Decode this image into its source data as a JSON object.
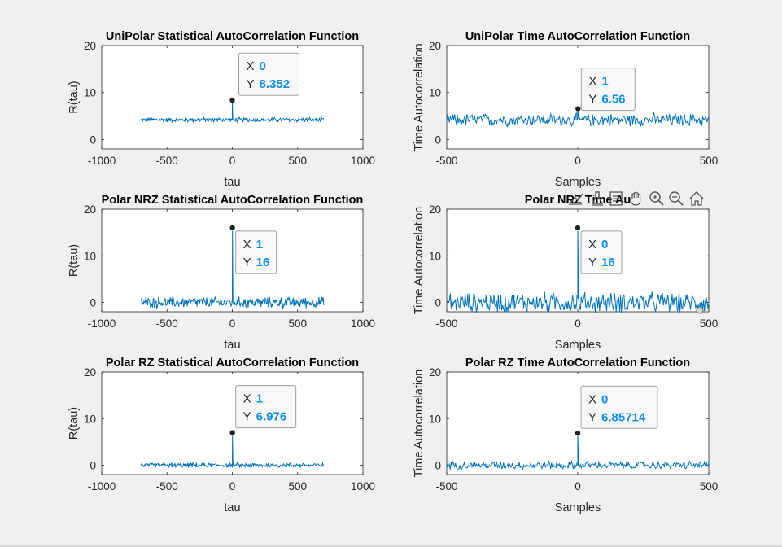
{
  "toolbar": {
    "icons": [
      "export-icon",
      "brush-icon",
      "link-data-icon",
      "pan-hand-icon",
      "zoom-in-icon",
      "zoom-out-icon",
      "home-icon"
    ]
  },
  "colors": {
    "line": "#0072bd",
    "tip_value": "#0d8ef0",
    "figure_bg": "#f0f0f0",
    "axes_bg": "#ffffff"
  },
  "chart_data": [
    {
      "type": "line",
      "title": "UniPolar Statistical AutoCorrelation Function",
      "xlabel": "tau",
      "ylabel": "R(tau)",
      "xlim": [
        -1000,
        1000
      ],
      "ylim": [
        -2,
        20
      ],
      "xticks": [
        "-1000",
        "-500",
        "0",
        "500",
        "1000"
      ],
      "yticks": [
        "0",
        "10",
        "20"
      ],
      "series": [
        {
          "x_range": [
            -700,
            700
          ],
          "baseline": 4.2,
          "noise_amplitude": 0.6,
          "peak": {
            "x": 0,
            "y": 8.352
          }
        }
      ],
      "datatip": {
        "x_label": "X",
        "x": "0",
        "y_label": "Y",
        "y": "8.352"
      }
    },
    {
      "type": "line",
      "title": "UniPolar Time AutoCorrelation Function",
      "xlabel": "Samples",
      "ylabel": "Time Autocorrelation",
      "xlim": [
        -500,
        500
      ],
      "ylim": [
        -2,
        20
      ],
      "xticks": [
        "-500",
        "0",
        "500"
      ],
      "yticks": [
        "0",
        "10",
        "20"
      ],
      "series": [
        {
          "x_range": [
            -500,
            500
          ],
          "baseline": 4.2,
          "noise_amplitude": 1.6,
          "peak": {
            "x": 1,
            "y": 6.56
          }
        }
      ],
      "datatip": {
        "x_label": "X",
        "x": "1",
        "y_label": "Y",
        "y": "6.56"
      }
    },
    {
      "type": "line",
      "title": "Polar NRZ Statistical AutoCorrelation Function",
      "xlabel": "tau",
      "ylabel": "R(tau)",
      "xlim": [
        -1000,
        1000
      ],
      "ylim": [
        -2,
        20
      ],
      "xticks": [
        "-1000",
        "-500",
        "0",
        "500",
        "1000"
      ],
      "yticks": [
        "0",
        "10",
        "20"
      ],
      "series": [
        {
          "x_range": [
            -700,
            700
          ],
          "baseline": 0,
          "noise_amplitude": 1.4,
          "peak": {
            "x": 1,
            "y": 16
          }
        }
      ],
      "datatip": {
        "x_label": "X",
        "x": "1",
        "y_label": "Y",
        "y": "16"
      }
    },
    {
      "type": "line",
      "title": "Polar NRZ Time AutoCorrelation Function",
      "title_visible": "Polar NRZ Time Au",
      "xlabel": "Samples",
      "ylabel": "Time Autocorrelation",
      "xlim": [
        -500,
        500
      ],
      "ylim": [
        -2,
        20
      ],
      "xticks": [
        "-500",
        "0",
        "500"
      ],
      "yticks": [
        "0",
        "10",
        "20"
      ],
      "series": [
        {
          "x_range": [
            -500,
            500
          ],
          "baseline": 0,
          "noise_amplitude": 2.6,
          "peak": {
            "x": 0,
            "y": 16
          }
        }
      ],
      "datatip": {
        "x_label": "X",
        "x": "0",
        "y_label": "Y",
        "y": "16"
      }
    },
    {
      "type": "line",
      "title": "Polar RZ Statistical AutoCorrelation Function",
      "xlabel": "tau",
      "ylabel": "R(tau)",
      "xlim": [
        -1000,
        1000
      ],
      "ylim": [
        -2,
        20
      ],
      "xticks": [
        "-1000",
        "-500",
        "0",
        "500",
        "1000"
      ],
      "yticks": [
        "0",
        "10",
        "20"
      ],
      "series": [
        {
          "x_range": [
            -700,
            700
          ],
          "baseline": 0,
          "noise_amplitude": 0.6,
          "peak": {
            "x": 1,
            "y": 6.976
          }
        }
      ],
      "datatip": {
        "x_label": "X",
        "x": "1",
        "y_label": "Y",
        "y": "6.976"
      }
    },
    {
      "type": "line",
      "title": "Polar RZ Time AutoCorrelation Function",
      "xlabel": "Samples",
      "ylabel": "Time Autocorrelation",
      "xlim": [
        -500,
        500
      ],
      "ylim": [
        -2,
        20
      ],
      "xticks": [
        "-500",
        "0",
        "500"
      ],
      "yticks": [
        "0",
        "10",
        "20"
      ],
      "series": [
        {
          "x_range": [
            -500,
            500
          ],
          "baseline": 0,
          "noise_amplitude": 1.0,
          "peak": {
            "x": 0,
            "y": 6.85714
          }
        }
      ],
      "datatip": {
        "x_label": "X",
        "x": "0",
        "y_label": "Y",
        "y": "6.85714"
      }
    }
  ]
}
